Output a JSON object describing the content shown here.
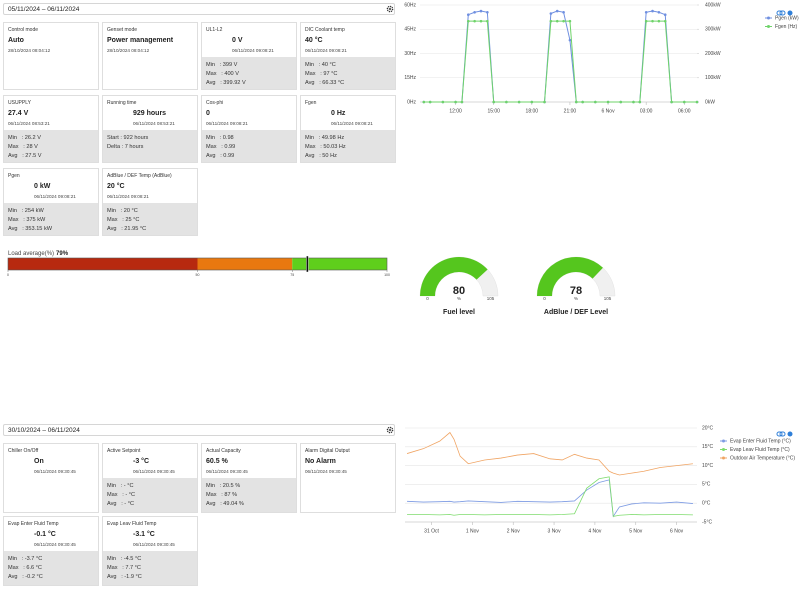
{
  "top_panel": {
    "date_range": "05/11/2024 – 06/11/2024",
    "cards": [
      {
        "title": "Control mode",
        "value": "Auto",
        "timestamp": "28/10/2024 08:04:12"
      },
      {
        "title": "Genset mode",
        "value": "Power management",
        "timestamp": "28/10/2024 08:04:12"
      },
      {
        "title": "UL1-L2",
        "value": "0 V",
        "timestamp": "06/11/2024 09:08:21",
        "stats": [
          "Min   : 399 V",
          "Max   : 400 V",
          "Avg   : 399.92 V"
        ]
      },
      {
        "title": "DIC Coolant temp",
        "value": "40 °C",
        "timestamp": "06/11/2024 09:08:21",
        "stats": [
          "Min   : 40 °C",
          "Max   : 97 °C",
          "Avg   : 66.33 °C"
        ]
      },
      {
        "title": "USUPPLY",
        "value": "27.4 V",
        "timestamp": "06/11/2024 08:53:21",
        "stats": [
          "Min   : 26.2 V",
          "Max   : 28 V",
          "Avg   : 27.5 V"
        ]
      },
      {
        "title": "Running time",
        "value": "929 hours",
        "timestamp": "06/11/2024 08:53:21",
        "stats": [
          "Start : 922 hours",
          "Delta : 7 hours"
        ]
      },
      {
        "title": "Cos-phi",
        "value": "0",
        "timestamp": "06/11/2024 09:08:21",
        "stats": [
          "Min   : 0.98",
          "Max   : 0.99",
          "Avg   : 0.99"
        ]
      },
      {
        "title": "Fgen",
        "value": "0 Hz",
        "timestamp": "06/11/2024 09:08:21",
        "stats": [
          "Min   : 49.98 Hz",
          "Max   : 50.03 Hz",
          "Avg   : 50 Hz"
        ]
      },
      {
        "title": "Pgen",
        "value": "0 kW",
        "timestamp": "06/11/2024 09:08:21",
        "stats": [
          "Min   : 254 kW",
          "Max   : 375 kW",
          "Avg   : 353.15 kW"
        ]
      },
      {
        "title": "AdBlue / DEF Temp (AdBlue)",
        "value": "20 °C",
        "timestamp": "06/11/2024 09:08:21",
        "stats": [
          "Min   : 20 °C",
          "Max   : 25 °C",
          "Avg   : 21.95 °C"
        ]
      }
    ]
  },
  "bottom_panel": {
    "date_range": "30/10/2024 – 06/11/2024",
    "cards": [
      {
        "title": "Chiller On/Off",
        "value": "On",
        "timestamp": "06/11/2024 09:30:45"
      },
      {
        "title": "Active Setpoint",
        "value": "-3 °C",
        "timestamp": "06/11/2024 09:30:45",
        "stats": [
          "Min   : - °C",
          "Max   : - °C",
          "Avg   : - °C"
        ]
      },
      {
        "title": "Actual Capacity",
        "value": "60.5 %",
        "timestamp": "06/11/2024 09:30:45",
        "stats": [
          "Min   : 20.5 %",
          "Max   : 87 %",
          "Avg   : 49.04 %"
        ]
      },
      {
        "title": "Alarm Digital Output",
        "value": "No Alarm",
        "timestamp": "06/11/2024 09:30:45"
      },
      {
        "title": "Evap Enter Fluid Temp",
        "value": "-0.1 °C",
        "timestamp": "06/11/2024 09:30:45",
        "stats": [
          "Min   : -3.7 °C",
          "Max   : 6.6 °C",
          "Avg   : -0.2 °C"
        ]
      },
      {
        "title": "Evap Leav Fluid Temp",
        "value": "-3.1 °C",
        "timestamp": "06/11/2024 09:30:45",
        "stats": [
          "Min   : -4.5 °C",
          "Max   : 7.7 °C",
          "Avg   : -1.9 °C"
        ]
      }
    ]
  },
  "chart_data": [
    {
      "type": "line",
      "markers": true,
      "grid": true,
      "x": [
        9.5,
        10,
        11,
        12,
        12.5,
        13,
        13.5,
        14,
        14.5,
        15,
        16,
        17,
        18,
        19,
        19.5,
        20,
        20.5,
        21,
        21.5,
        22,
        23,
        24,
        25,
        26,
        26.5,
        27,
        27.5,
        28,
        28.5,
        29,
        30,
        31
      ],
      "xlim": [
        9.2,
        31
      ],
      "xticks": [
        {
          "value": 12,
          "label": "12:00"
        },
        {
          "value": 15,
          "label": "15:00"
        },
        {
          "value": 18,
          "label": "18:00"
        },
        {
          "value": 21,
          "label": "21:00"
        },
        {
          "value": 24,
          "label": "6 Nov"
        },
        {
          "value": 27,
          "label": "03:00"
        },
        {
          "value": 30,
          "label": "06:00"
        },
        {
          "value": 33,
          "label": "09:00"
        }
      ],
      "ylim": [
        0,
        60
      ],
      "yticks": [
        {
          "value": 0,
          "label": "0Hz"
        },
        {
          "value": 15,
          "label": "15Hz"
        },
        {
          "value": 30,
          "label": "30Hz"
        },
        {
          "value": 45,
          "label": "45Hz"
        },
        {
          "value": 60,
          "label": "60Hz"
        }
      ],
      "y2lim": [
        0,
        400
      ],
      "y2ticks": [
        {
          "value": 0,
          "label": "0kW"
        },
        {
          "value": 100,
          "label": "100kW"
        },
        {
          "value": 200,
          "label": "200kW"
        },
        {
          "value": 300,
          "label": "300kW"
        },
        {
          "value": 400,
          "label": "400kW"
        }
      ],
      "series": [
        {
          "name": "Pgen (kW)",
          "color": "#6f8fe0",
          "axis": "y2",
          "values": [
            0,
            0,
            0,
            0,
            0,
            360,
            370,
            375,
            370,
            0,
            0,
            0,
            0,
            0,
            365,
            375,
            370,
            255,
            0,
            0,
            0,
            0,
            0,
            0,
            0,
            370,
            375,
            370,
            360,
            0,
            0,
            0
          ]
        },
        {
          "name": "Fgen (Hz)",
          "color": "#6fd36a",
          "values": [
            0,
            0,
            0,
            0,
            0,
            50,
            50,
            50,
            50,
            0,
            0,
            0,
            0,
            0,
            50,
            50,
            50,
            50,
            0,
            0,
            0,
            0,
            0,
            0,
            0,
            50,
            50,
            50,
            50,
            0,
            0,
            0
          ]
        }
      ]
    },
    {
      "type": "bullet",
      "title": "Load average(%)",
      "value": 79,
      "value_labels": "79%",
      "xlim": [
        0,
        100
      ],
      "xticks": [
        0,
        50,
        75,
        100
      ],
      "band_colors": [
        "#b7290f",
        "#e9780f",
        "#5fcf1c"
      ]
    },
    {
      "type": "gauge",
      "title": "Fuel level",
      "value": 80,
      "unit": "%",
      "range": [
        0,
        105
      ],
      "color": "#55c61e"
    },
    {
      "type": "gauge",
      "title": "AdBlue / DEF Level",
      "value": 78,
      "unit": "%",
      "range": [
        0,
        105
      ],
      "color": "#55c61e"
    },
    {
      "type": "line",
      "markers": false,
      "grid": true,
      "y_axis_side": "right",
      "x": [
        30.4,
        30.8,
        31.2,
        31.45,
        31.55,
        31.7,
        31.9,
        32.3,
        32.7,
        33.1,
        33.5,
        33.9,
        34.2,
        34.5,
        34.8,
        35.1,
        35.35,
        35.45,
        35.6,
        35.9,
        36.2,
        36.6,
        37.0,
        37.4
      ],
      "xlim": [
        30.35,
        37.5
      ],
      "xticks": [
        {
          "value": 31,
          "label": "31 Oct"
        },
        {
          "value": 32,
          "label": "1 Nov"
        },
        {
          "value": 33,
          "label": "2 Nov"
        },
        {
          "value": 34,
          "label": "3 Nov"
        },
        {
          "value": 35,
          "label": "4 Nov"
        },
        {
          "value": 36,
          "label": "5 Nov"
        },
        {
          "value": 37,
          "label": "6 Nov"
        }
      ],
      "ylim": [
        -5,
        20
      ],
      "yticks": [
        {
          "value": -5,
          "label": "-5°C"
        },
        {
          "value": 0,
          "label": "0°C"
        },
        {
          "value": 5,
          "label": "5°C"
        },
        {
          "value": 10,
          "label": "10°C"
        },
        {
          "value": 15,
          "label": "15°C"
        },
        {
          "value": 20,
          "label": "20°C"
        }
      ],
      "series": [
        {
          "name": "Evap Enter Fluid Temp (°C)",
          "color": "#7d9be3",
          "values": [
            0.5,
            0.3,
            0.4,
            0.5,
            0.3,
            0.4,
            0.6,
            0.4,
            0.2,
            0.5,
            0.4,
            0.3,
            0.4,
            0.6,
            3.5,
            5.5,
            6.2,
            -3.5,
            -1,
            -0.2,
            0.1,
            0,
            0.3,
            -0.1
          ]
        },
        {
          "name": "Evap Leav Fluid Temp (°C)",
          "color": "#7fdc6e",
          "values": [
            -3,
            -3,
            -3.1,
            -3,
            -3.2,
            -3,
            -3,
            -3.1,
            -3,
            -3,
            -3,
            -3.1,
            -3,
            -2.8,
            4,
            6.5,
            7,
            -3.5,
            -3.2,
            -3,
            -3.1,
            -3,
            -3,
            -3.1
          ]
        },
        {
          "name": "Outdoor Air Temperature (°C)",
          "color": "#f0a463",
          "values": [
            13.2,
            14.5,
            16.5,
            18.8,
            17,
            12.5,
            10.5,
            11.5,
            12,
            12.8,
            13.2,
            11.8,
            11.5,
            13,
            12,
            11.5,
            8.5,
            8,
            7.5,
            8,
            8.5,
            9.5,
            10,
            10.5
          ]
        }
      ]
    }
  ]
}
